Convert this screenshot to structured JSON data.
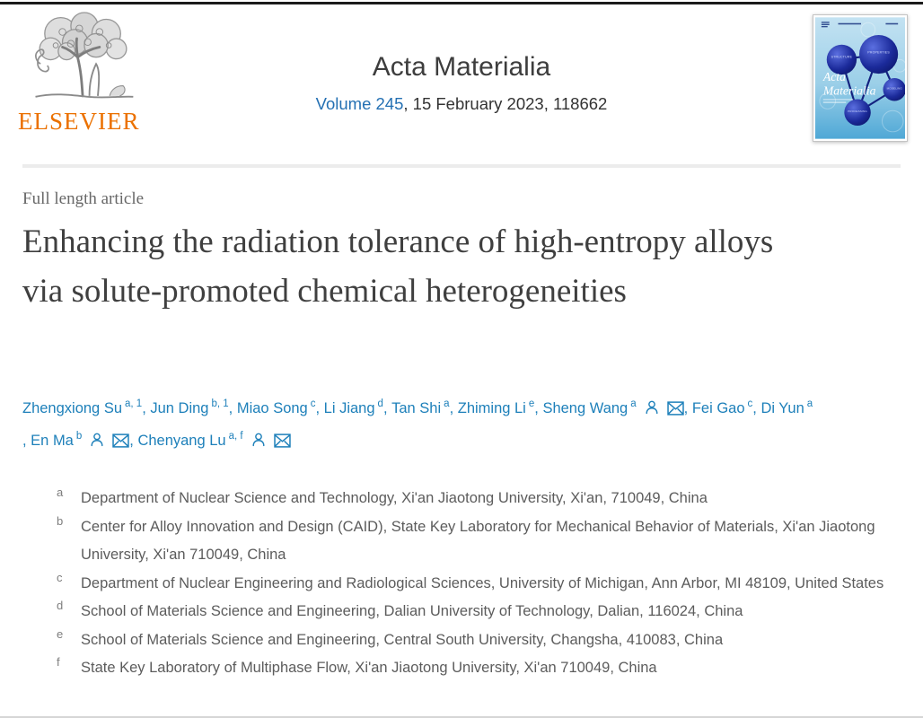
{
  "header": {
    "publisher": "ELSEVIER",
    "journal_title": "Acta Materialia",
    "volume_link": "Volume 245",
    "issue_info": ", 15 February 2023, 118662"
  },
  "cover": {
    "title_line1": "Acta",
    "title_line2": "Materialia",
    "spheres": [
      "STRUCTURE",
      "PROPERTIES",
      "MODELING",
      "PROCESSING"
    ]
  },
  "article": {
    "type_label": "Full length article",
    "title": "Enhancing the radiation tolerance of high-entropy alloys via solute-promoted chemical heterogeneities"
  },
  "authors": [
    {
      "name": "Zhengxiong Su",
      "sup": "a, 1",
      "icons": []
    },
    {
      "name": "Jun Ding",
      "sup": "b, 1",
      "icons": []
    },
    {
      "name": "Miao Song",
      "sup": "c",
      "icons": []
    },
    {
      "name": "Li Jiang",
      "sup": "d",
      "icons": []
    },
    {
      "name": "Tan Shi",
      "sup": "a",
      "icons": []
    },
    {
      "name": "Zhiming Li",
      "sup": "e",
      "icons": []
    },
    {
      "name": "Sheng Wang",
      "sup": "a",
      "icons": [
        "person",
        "envelope"
      ]
    },
    {
      "name": "Fei Gao",
      "sup": "c",
      "icons": []
    },
    {
      "name": "Di Yun",
      "sup": "a",
      "icons": []
    },
    {
      "name": "En Ma",
      "sup": "b",
      "icons": [
        "person",
        "envelope"
      ]
    },
    {
      "name": "Chenyang Lu",
      "sup": "a, f",
      "icons": [
        "person",
        "envelope"
      ]
    }
  ],
  "affiliations": [
    {
      "sup": "a",
      "text": "Department of Nuclear Science and Technology, Xi'an Jiaotong University, Xi'an, 710049, China"
    },
    {
      "sup": "b",
      "text": "Center for Alloy Innovation and Design (CAID), State Key Laboratory for Mechanical Behavior of Materials, Xi'an Jiaotong University, Xi'an 710049, China"
    },
    {
      "sup": "c",
      "text": "Department of Nuclear Engineering and Radiological Sciences, University of Michigan, Ann Arbor, MI 48109, United States"
    },
    {
      "sup": "d",
      "text": "School of Materials Science and Engineering, Dalian University of Technology, Dalian, 116024, China"
    },
    {
      "sup": "e",
      "text": "School of Materials Science and Engineering, Central South University, Changsha, 410083, China"
    },
    {
      "sup": "f",
      "text": "State Key Laboratory of Multiphase Flow, Xi'an Jiaotong University, Xi'an 710049, China"
    }
  ],
  "colors": {
    "link_blue": "#1e80ba",
    "volume_blue": "#2470b3",
    "elsevier_orange": "#eb7100",
    "cover_navy": "#0d1a70",
    "text_dark": "#3f3f3f",
    "text_gray": "#5c5c5c"
  }
}
